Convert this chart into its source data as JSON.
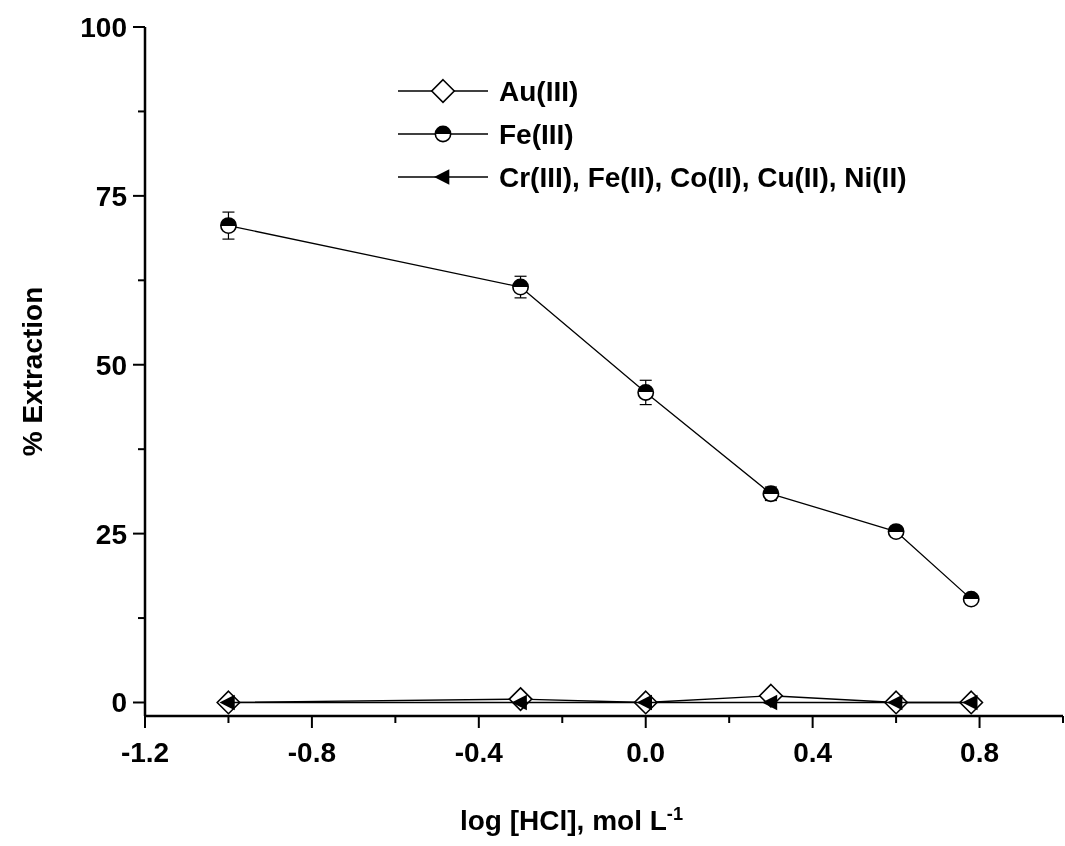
{
  "chart_data": {
    "type": "line",
    "xlabel": "log [HCl], mol L$^{-1}$",
    "ylabel": "% Extraction",
    "x": [
      -1.0,
      -0.3,
      0.0,
      0.3,
      0.6,
      0.78
    ],
    "series": [
      {
        "name": "Au(III)",
        "color": "#000000",
        "marker": "diamond",
        "values": [
          0,
          0.5,
          0,
          1.0,
          0,
          0
        ]
      },
      {
        "name": "Fe(III)",
        "color": "#000000",
        "marker": "circle",
        "values": [
          70.6,
          61.5,
          45.9,
          30.9,
          25.3,
          15.3
        ],
        "errors": [
          2,
          1.6,
          1.8,
          1.0,
          0.6,
          0.4
        ]
      },
      {
        "name": "Cr(III), Fe(II), Co(II), Cu(II), Ni(II)",
        "color": "#000000",
        "marker": "triangle",
        "values": [
          0,
          0,
          0,
          0,
          0,
          0
        ]
      }
    ],
    "xlim": [
      -1.2,
      1.0
    ],
    "xticks": [
      -1.2,
      {
        "value": -1.0,
        "label": null
      },
      -0.8,
      {
        "value": -0.6,
        "label": null
      },
      -0.4,
      {
        "value": -0.2,
        "label": null
      },
      {
        "value": 0.0,
        "label": "0.0"
      },
      {
        "value": 0.2,
        "label": null
      },
      0.4,
      {
        "value": 0.6,
        "label": null
      },
      0.8,
      {
        "value": 1.0,
        "label": null
      }
    ],
    "ylim": [
      -2,
      100
    ],
    "yticks": [
      0,
      {
        "value": 12.5,
        "label": null
      },
      25,
      {
        "value": 37.5,
        "label": null
      },
      50,
      {
        "value": 62.5,
        "label": null
      },
      75,
      {
        "value": 87.5,
        "label": null
      },
      100
    ],
    "grid": false,
    "legend": "top",
    "line_style": "solid"
  }
}
